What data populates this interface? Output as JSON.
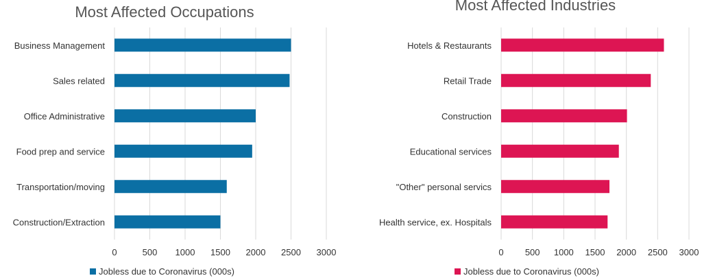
{
  "chart_data": [
    {
      "type": "bar",
      "orientation": "horizontal",
      "title": "Most Affected Occupations",
      "categories": [
        "Business Management",
        "Sales related",
        "Office Administrative",
        "Food prep and service",
        "Transportation/moving",
        "Construction/Extraction"
      ],
      "series": [
        {
          "name": "Jobless due to Coronavirus (000s)",
          "color": "#0b6fa4",
          "values": [
            2500,
            2480,
            2000,
            1950,
            1590,
            1500
          ]
        }
      ],
      "xlim": [
        0,
        3000
      ],
      "xticks": [
        "0",
        "500",
        "1000",
        "1500",
        "2000",
        "2500",
        "3000"
      ],
      "grid": true,
      "legend": "bottom"
    },
    {
      "type": "bar",
      "orientation": "horizontal",
      "title": "Most Affected Industries",
      "categories": [
        "Hotels & Restaurants",
        "Retail Trade",
        "Construction",
        "Educational services",
        "\"Other\" personal servics",
        "Health service, ex. Hospitals"
      ],
      "series": [
        {
          "name": "Jobless due to Coronavirus (000s)",
          "color": "#dd1553",
          "values": [
            2600,
            2390,
            2010,
            1880,
            1730,
            1700
          ]
        }
      ],
      "xlim": [
        0,
        3000
      ],
      "xticks": [
        "0",
        "500",
        "1000",
        "1500",
        "2000",
        "2500",
        "3000"
      ],
      "grid": true,
      "legend": "bottom"
    }
  ]
}
